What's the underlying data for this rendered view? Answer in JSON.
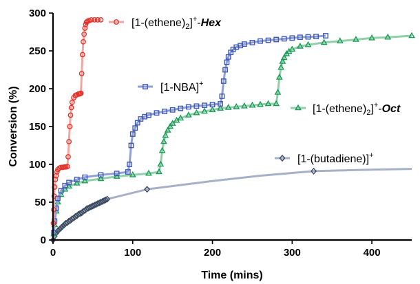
{
  "chart_data": {
    "type": "line",
    "xlabel": "Time (mins)",
    "ylabel": "Conversion (%)",
    "xlim": [
      0,
      450
    ],
    "ylim": [
      0,
      300
    ],
    "xticks": [
      0,
      100,
      200,
      300,
      400
    ],
    "yticks": [
      0,
      50,
      100,
      150,
      200,
      250,
      300
    ],
    "grid": false,
    "legend_placement": "inline",
    "series": [
      {
        "key": "hex",
        "legend": {
          "pre": "[1-(ethene)",
          "sub": "2",
          "sup": "]+",
          "sep": "-",
          "ital": "Hex"
        },
        "color": "#e5332a",
        "line_color": "#f2a6a1",
        "marker": "circle",
        "x": [
          0.5,
          1,
          1.5,
          2,
          3,
          4,
          5,
          6,
          8,
          10,
          12,
          14,
          16,
          18,
          19,
          20,
          21,
          22,
          23,
          24,
          26,
          28,
          30,
          32,
          33,
          34,
          35,
          36,
          37,
          38,
          39,
          40,
          41,
          42,
          43,
          45,
          48,
          52,
          56,
          60
        ],
        "y": [
          22,
          40,
          58,
          70,
          80,
          85,
          90,
          93,
          95,
          96,
          96,
          96.5,
          96.5,
          97,
          110,
          130,
          150,
          165,
          175,
          182,
          188,
          191,
          192,
          193,
          193,
          193.5,
          194,
          220,
          245,
          262,
          272,
          280,
          285,
          288,
          289,
          290,
          291,
          291,
          291,
          291
        ]
      },
      {
        "key": "nba",
        "legend": {
          "pre": "[1-NBA]",
          "sub": "",
          "sup": "+",
          "sep": "",
          "ital": ""
        },
        "color": "#3f58b6",
        "line_color": "#8f9fd8",
        "marker": "square",
        "x": [
          1,
          2,
          4,
          6,
          10,
          15,
          20,
          30,
          40,
          60,
          80,
          94,
          96,
          98,
          100,
          103,
          106,
          110,
          115,
          120,
          130,
          140,
          150,
          160,
          170,
          180,
          190,
          200,
          210,
          212,
          214,
          216,
          218,
          220,
          223,
          226,
          230,
          235,
          240,
          250,
          260,
          270,
          280,
          290,
          300,
          310,
          320,
          330,
          342
        ],
        "y": [
          10,
          25,
          42,
          55,
          65,
          72,
          76,
          80,
          83,
          86,
          88,
          90,
          100,
          125,
          140,
          148,
          155,
          160,
          163,
          165,
          168,
          170,
          172,
          174,
          176,
          177,
          178,
          179,
          180,
          190,
          210,
          225,
          235,
          242,
          248,
          252,
          255,
          257,
          259,
          261,
          263,
          264,
          265,
          266,
          267,
          268,
          268.5,
          269,
          270
        ]
      },
      {
        "key": "oct",
        "legend": {
          "pre": "[1-(ethene)",
          "sub": "2",
          "sup": "]+",
          "sep": "-",
          "ital": "Oct"
        },
        "color": "#199a56",
        "line_color": "#8fd0a8",
        "marker": "triangle",
        "x": [
          1,
          2,
          4,
          6,
          10,
          15,
          20,
          30,
          40,
          60,
          80,
          100,
          120,
          133,
          135,
          137,
          139,
          141,
          144,
          147,
          150,
          155,
          160,
          170,
          180,
          190,
          200,
          210,
          220,
          230,
          240,
          250,
          260,
          270,
          280,
          282,
          284,
          286,
          288,
          290,
          293,
          296,
          300,
          310,
          320,
          340,
          360,
          380,
          400,
          420,
          450
        ],
        "y": [
          8,
          20,
          38,
          50,
          60,
          67,
          71,
          75,
          78,
          81,
          84,
          86,
          88,
          90,
          100,
          118,
          130,
          138,
          145,
          150,
          154,
          158,
          161,
          165,
          168,
          170,
          172,
          174,
          175,
          176,
          177,
          178,
          179,
          180,
          180,
          195,
          215,
          228,
          236,
          241,
          246,
          249,
          252,
          256,
          258,
          261,
          263,
          265,
          267,
          268,
          270
        ]
      },
      {
        "key": "butadiene",
        "legend": {
          "pre": "[1-(butadiene)]",
          "sub": "",
          "sup": "+",
          "sep": "",
          "ital": ""
        },
        "color": "#3b4a5f",
        "line_color": "#a6b0c6",
        "marker": "diamond",
        "x": [
          0,
          2,
          4,
          6,
          8,
          10,
          12,
          14,
          16,
          18,
          20,
          22,
          24,
          26,
          28,
          30,
          32,
          34,
          36,
          38,
          40,
          42,
          44,
          46,
          48,
          50,
          52,
          54,
          56,
          58,
          60,
          62,
          64,
          66,
          68,
          118,
          200,
          260,
          327,
          400,
          450
        ],
        "y": [
          0,
          5,
          9,
          12,
          14,
          16,
          18,
          20,
          22,
          23,
          25,
          26,
          28,
          29,
          31,
          32,
          34,
          35,
          36,
          38,
          39,
          41,
          42,
          43,
          44,
          45,
          46,
          47,
          48,
          49,
          50,
          51,
          52,
          53,
          54,
          67,
          78,
          85,
          91,
          93,
          94
        ]
      }
    ]
  }
}
